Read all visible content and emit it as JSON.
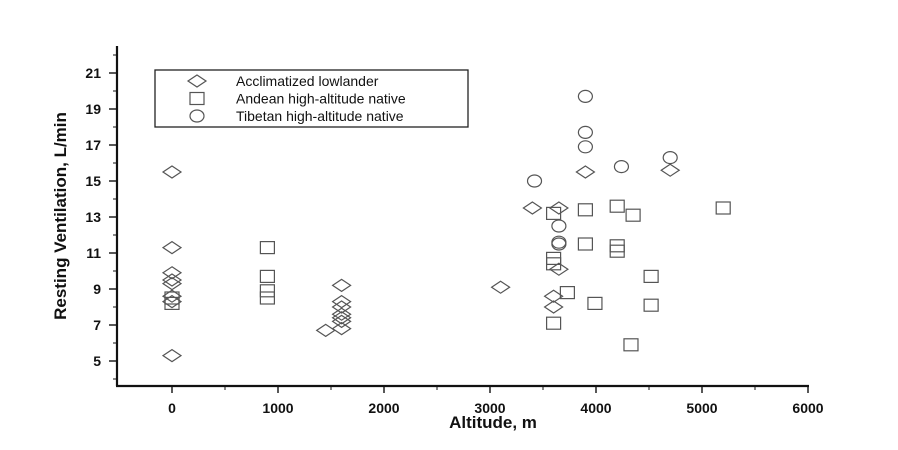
{
  "chart_data": {
    "type": "scatter",
    "title": "",
    "xlabel": "Altitude, m",
    "ylabel": "Resting Ventilation, L/min",
    "xlim": [
      -520,
      6000
    ],
    "ylim": [
      3.7,
      22.5
    ],
    "x_ticks": [
      0,
      1000,
      2000,
      3000,
      4000,
      5000,
      6000
    ],
    "x_minor_ticks": [
      500,
      1500,
      2500,
      3500,
      4500,
      5500
    ],
    "y_ticks": [
      5,
      7,
      9,
      11,
      13,
      15,
      17,
      19,
      21
    ],
    "y_minor_ticks": [
      4,
      6,
      8,
      10,
      12,
      14,
      16,
      18,
      20,
      22
    ],
    "grid": false,
    "legend_position": "upper-left",
    "series": [
      {
        "name": "Acclimatized lowlander",
        "marker": "diamond",
        "points": [
          [
            0,
            15.5
          ],
          [
            0,
            11.3
          ],
          [
            0,
            9.9
          ],
          [
            0,
            9.5
          ],
          [
            0,
            9.3
          ],
          [
            0,
            8.6
          ],
          [
            0,
            8.3
          ],
          [
            0,
            5.3
          ],
          [
            1450,
            6.7
          ],
          [
            1600,
            9.2
          ],
          [
            1600,
            8.3
          ],
          [
            1600,
            8.0
          ],
          [
            1600,
            7.6
          ],
          [
            1600,
            7.4
          ],
          [
            1600,
            7.2
          ],
          [
            1600,
            6.8
          ],
          [
            3100,
            9.1
          ],
          [
            3400,
            13.5
          ],
          [
            3650,
            13.5
          ],
          [
            3650,
            10.1
          ],
          [
            3600,
            8.6
          ],
          [
            3600,
            8.0
          ],
          [
            3900,
            15.5
          ],
          [
            4700,
            15.6
          ]
        ]
      },
      {
        "name": "Andean high-altitude native",
        "marker": "square",
        "points": [
          [
            0,
            8.5
          ],
          [
            0,
            8.2
          ],
          [
            900,
            11.3
          ],
          [
            900,
            9.7
          ],
          [
            900,
            8.9
          ],
          [
            900,
            8.5
          ],
          [
            3600,
            13.2
          ],
          [
            3600,
            10.7
          ],
          [
            3600,
            10.4
          ],
          [
            3600,
            7.1
          ],
          [
            3730,
            8.8
          ],
          [
            3900,
            13.4
          ],
          [
            3900,
            11.5
          ],
          [
            3990,
            8.2
          ],
          [
            4200,
            13.6
          ],
          [
            4200,
            11.4
          ],
          [
            4200,
            11.1
          ],
          [
            4350,
            13.1
          ],
          [
            4330,
            5.9
          ],
          [
            4520,
            9.7
          ],
          [
            4520,
            8.1
          ],
          [
            5200,
            13.5
          ]
        ]
      },
      {
        "name": "Tibetan high-altitude native",
        "marker": "circle",
        "points": [
          [
            3420,
            15.0
          ],
          [
            3650,
            12.5
          ],
          [
            3650,
            11.6
          ],
          [
            3650,
            11.5
          ],
          [
            3900,
            19.7
          ],
          [
            3900,
            17.7
          ],
          [
            3900,
            16.9
          ],
          [
            4240,
            15.8
          ],
          [
            4700,
            16.3
          ]
        ]
      }
    ]
  },
  "legend": {
    "items": [
      {
        "marker": "diamond",
        "label": "Acclimatized lowlander"
      },
      {
        "marker": "square",
        "label": "Andean high-altitude native"
      },
      {
        "marker": "circle",
        "label": "Tibetan high-altitude native"
      }
    ]
  },
  "colors": {
    "axis": "#111111",
    "marker_stroke": "#555555",
    "legend_border": "#222222"
  }
}
